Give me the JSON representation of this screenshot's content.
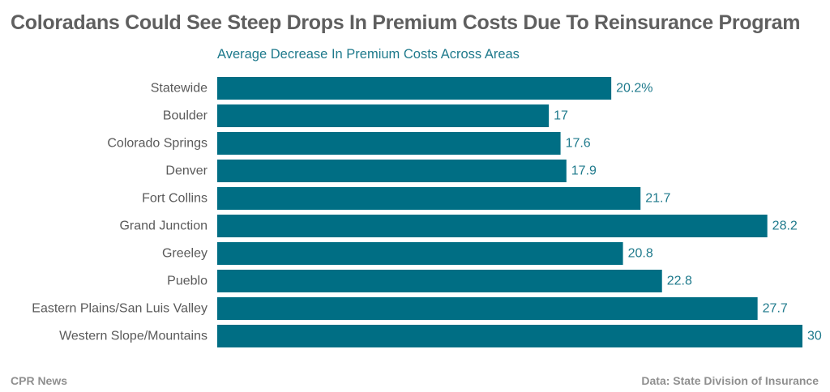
{
  "title": "Coloradans Could See Steep Drops In Premium Costs Due To Reinsurance Program",
  "subtitle": "Average Decrease In Premium Costs Across Areas",
  "footer": {
    "source_left": "CPR News",
    "source_right": "Data: State Division of Insurance"
  },
  "colors": {
    "bar": "#006e84",
    "value_label": "#1f7a8c",
    "title": "#5f5f5f"
  },
  "chart_data": {
    "type": "bar",
    "orientation": "horizontal",
    "title": "Coloradans Could See Steep Drops In Premium Costs Due To Reinsurance Program",
    "subtitle": "Average Decrease In Premium Costs Across Areas",
    "categories": [
      "Statewide",
      "Boulder",
      "Colorado Springs",
      "Denver",
      "Fort Collins",
      "Grand Junction",
      "Greeley",
      "Pueblo",
      "Eastern Plains/San Luis Valley",
      "Western Slope/Mountains"
    ],
    "values": [
      20.2,
      17,
      17.6,
      17.9,
      21.7,
      28.2,
      20.8,
      22.8,
      27.7,
      30
    ],
    "value_labels": [
      "20.2%",
      "17",
      "17.6",
      "17.9",
      "21.7",
      "28.2",
      "20.8",
      "22.8",
      "27.7",
      "30"
    ],
    "xlim": [
      0,
      30
    ],
    "grid": false,
    "legend": "none"
  }
}
